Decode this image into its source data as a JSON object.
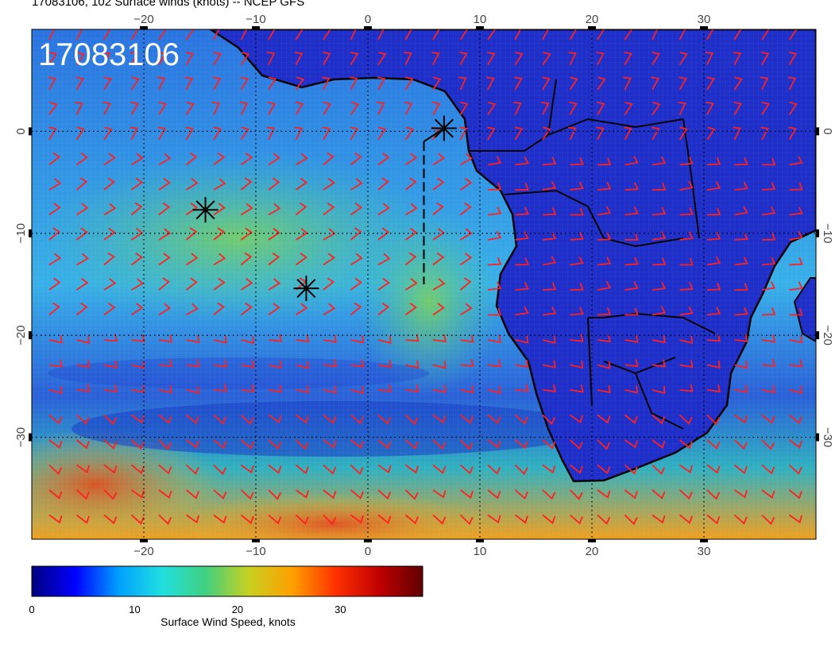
{
  "title": "17083106, 102 Surface winds (knots) -- NCEP GFS",
  "stamp": "17083106",
  "map": {
    "projection": "lat-lon",
    "lon_range": [
      -30,
      40
    ],
    "lat_range": [
      -40,
      10
    ],
    "lon_ticks": [
      "−20",
      "−10",
      "0",
      "10",
      "20",
      "30"
    ],
    "lat_ticks": [
      "0",
      "−10",
      "−20",
      "−30"
    ],
    "markers": [
      {
        "name": "marker-a",
        "lon": -14.5,
        "lat": -7.7
      },
      {
        "name": "marker-b",
        "lon": -5.5,
        "lat": -15.4
      },
      {
        "name": "marker-c",
        "lon": 6.8,
        "lat": 0.3
      }
    ],
    "track_lon": 5.0,
    "track_lat": [
      -15,
      -1
    ]
  },
  "colorbar": {
    "label": "Surface Wind Speed, knots",
    "ticks": [
      "0",
      "10",
      "20",
      "30"
    ],
    "range": [
      0,
      38
    ],
    "colors": [
      "#000080",
      "#0000ff",
      "#00a0ff",
      "#20e0e0",
      "#40d080",
      "#c8d020",
      "#ffa000",
      "#ff3000",
      "#c00000",
      "#600000"
    ]
  },
  "colors": {
    "barb": "#ff2020",
    "ocean": "#2f7ee0",
    "land": "#1e2ed0",
    "coast": "#000000"
  }
}
